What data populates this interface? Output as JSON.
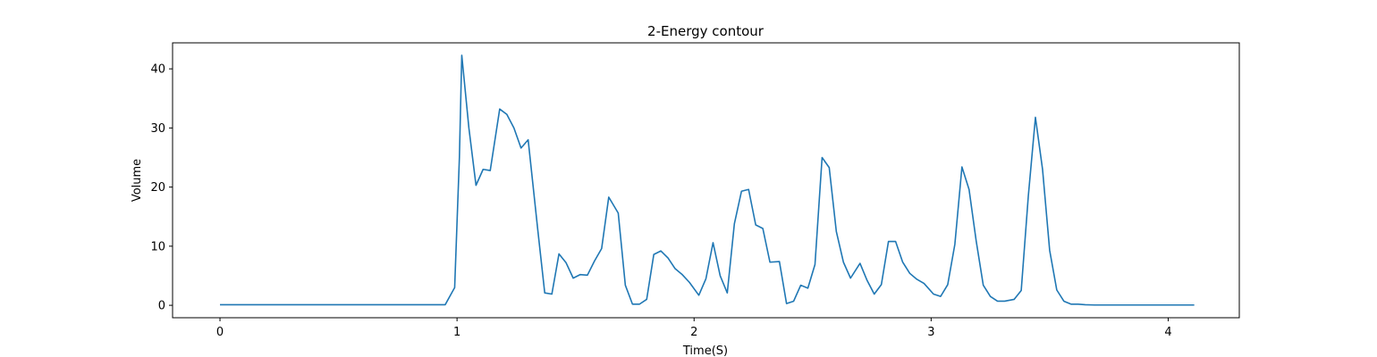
{
  "chart_data": {
    "type": "line",
    "title": "2-Energy contour",
    "xlabel": "Time(S)",
    "ylabel": "Volume",
    "xlim": [
      -0.2,
      4.3
    ],
    "ylim": [
      -2.1,
      44.4
    ],
    "grid": false,
    "xticks": [
      0,
      1,
      2,
      3,
      4
    ],
    "yticks": [
      0,
      10,
      20,
      30,
      40
    ],
    "series": [
      {
        "color": "#1f77b4",
        "x": [
          0,
          0.95,
          0.99,
          1.01,
          1.02,
          1.05,
          1.08,
          1.11,
          1.14,
          1.18,
          1.21,
          1.24,
          1.27,
          1.3,
          1.34,
          1.37,
          1.4,
          1.43,
          1.46,
          1.49,
          1.52,
          1.55,
          1.58,
          1.61,
          1.64,
          1.68,
          1.71,
          1.74,
          1.77,
          1.8,
          1.83,
          1.86,
          1.89,
          1.92,
          1.95,
          1.98,
          2.02,
          2.05,
          2.08,
          2.11,
          2.14,
          2.17,
          2.2,
          2.23,
          2.26,
          2.29,
          2.32,
          2.36,
          2.39,
          2.42,
          2.45,
          2.48,
          2.51,
          2.54,
          2.57,
          2.6,
          2.63,
          2.66,
          2.7,
          2.73,
          2.76,
          2.79,
          2.82,
          2.85,
          2.88,
          2.91,
          2.94,
          2.97,
          3.01,
          3.04,
          3.07,
          3.1,
          3.13,
          3.16,
          3.19,
          3.22,
          3.25,
          3.28,
          3.31,
          3.35,
          3.38,
          3.41,
          3.44,
          3.47,
          3.5,
          3.53,
          3.56,
          3.59,
          3.62,
          3.65,
          3.69,
          3.72,
          3.8,
          4.11
        ],
        "y": [
          0.1,
          0.1,
          3.0,
          25.0,
          42.3,
          30.0,
          20.3,
          23.0,
          22.8,
          33.2,
          32.3,
          30.0,
          26.6,
          28.0,
          13.0,
          2.1,
          1.9,
          8.7,
          7.2,
          4.6,
          5.2,
          5.1,
          7.5,
          9.6,
          18.3,
          15.6,
          3.4,
          0.2,
          0.2,
          1.0,
          8.6,
          9.2,
          8.0,
          6.2,
          5.2,
          3.9,
          1.7,
          4.5,
          10.6,
          5.0,
          2.1,
          13.8,
          19.3,
          19.6,
          13.6,
          13.0,
          7.3,
          7.4,
          0.3,
          0.7,
          3.4,
          2.9,
          6.9,
          25.0,
          23.3,
          12.5,
          7.3,
          4.6,
          7.1,
          4.2,
          1.9,
          3.5,
          10.8,
          10.8,
          7.3,
          5.4,
          4.4,
          3.7,
          1.9,
          1.5,
          3.5,
          10.3,
          23.4,
          19.6,
          10.9,
          3.4,
          1.5,
          0.7,
          0.7,
          1.0,
          2.5,
          18.5,
          31.8,
          23.0,
          9.3,
          2.6,
          0.7,
          0.2,
          0.2,
          0.1,
          0.05,
          0.05,
          0.05,
          0.05
        ]
      }
    ]
  }
}
